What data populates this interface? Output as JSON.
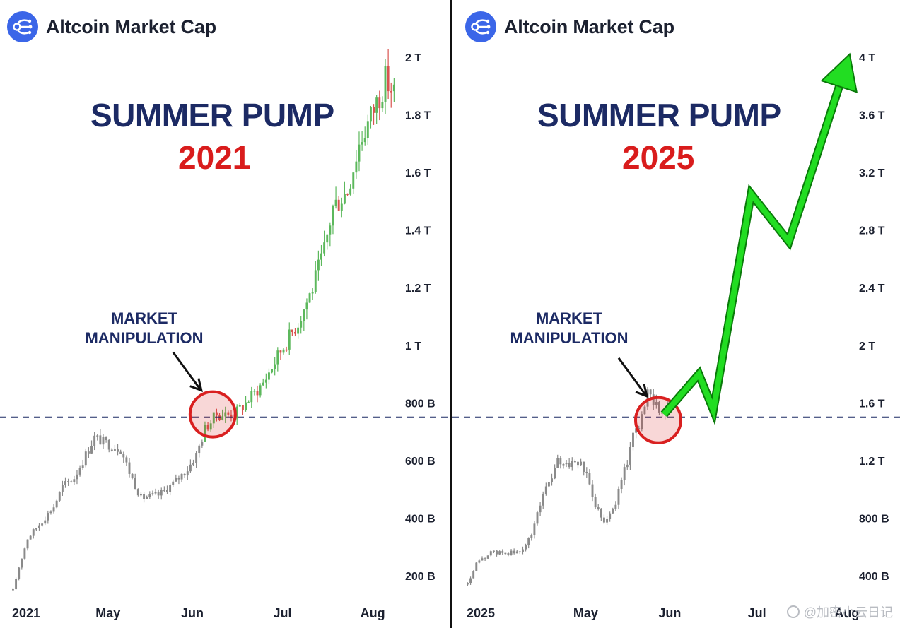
{
  "panels": [
    {
      "brand": "Altcoin Market Cap",
      "headline": "SUMMER PUMP",
      "year": "2021",
      "annotation_line1": "MARKET",
      "annotation_line2": "MANIPULATION",
      "watermark": ""
    },
    {
      "brand": "Altcoin Market Cap",
      "headline": "SUMMER PUMP",
      "year": "2025",
      "annotation_line1": "MARKET",
      "annotation_line2": "MANIPULATION",
      "watermark": "@加密小云日记"
    }
  ],
  "colors": {
    "brand_blue": "#3b66e8",
    "headline_navy": "#1c2a64",
    "year_red": "#d91c1c",
    "candle_gray": "#8a8a8a",
    "candle_up": "#5cb85c",
    "candle_down": "#d9534f",
    "arrow_green": "#22dd22",
    "circle_red": "#d92020"
  },
  "chart_data": [
    {
      "type": "candlestick",
      "title": "Altcoin Market Cap",
      "y_unit": "USD",
      "ylim": [
        100000000000,
        2000000000000
      ],
      "y_ticks": [
        2000000000000,
        1800000000000,
        1600000000000,
        1400000000000,
        1200000000000,
        1000000000000,
        800000000000,
        600000000000,
        400000000000,
        200000000000
      ],
      "y_tick_labels": [
        "2 T",
        "1.8 T",
        "1.6 T",
        "1.4 T",
        "1.2 T",
        "1 T",
        "800 B",
        "600 B",
        "400 B",
        "200 B"
      ],
      "x_tick_labels": [
        "2021",
        "May",
        "Jun",
        "Jul",
        "Aug"
      ],
      "x_tick_positions": [
        0,
        33,
        62,
        93,
        124
      ],
      "x_count": 132,
      "reference_line": 750000000000,
      "highlight_circle": {
        "x": 69,
        "y": 760000000000
      },
      "keypoints": [
        {
          "x": 0,
          "v": 150
        },
        {
          "x": 2,
          "v": 230
        },
        {
          "x": 5,
          "v": 330
        },
        {
          "x": 10,
          "v": 390
        },
        {
          "x": 14,
          "v": 440
        },
        {
          "x": 17,
          "v": 510
        },
        {
          "x": 21,
          "v": 540
        },
        {
          "x": 25,
          "v": 620
        },
        {
          "x": 28,
          "v": 680
        },
        {
          "x": 32,
          "v": 660
        },
        {
          "x": 37,
          "v": 640
        },
        {
          "x": 40,
          "v": 560
        },
        {
          "x": 44,
          "v": 470
        },
        {
          "x": 50,
          "v": 480
        },
        {
          "x": 55,
          "v": 520
        },
        {
          "x": 60,
          "v": 570
        },
        {
          "x": 63,
          "v": 620
        },
        {
          "x": 66,
          "v": 710
        },
        {
          "x": 70,
          "v": 760
        },
        {
          "x": 76,
          "v": 760
        },
        {
          "x": 80,
          "v": 800
        },
        {
          "x": 86,
          "v": 870
        },
        {
          "x": 92,
          "v": 980
        },
        {
          "x": 98,
          "v": 1080
        },
        {
          "x": 103,
          "v": 1200
        },
        {
          "x": 107,
          "v": 1330
        },
        {
          "x": 110,
          "v": 1480
        },
        {
          "x": 115,
          "v": 1540
        },
        {
          "x": 119,
          "v": 1700
        },
        {
          "x": 124,
          "v": 1820
        },
        {
          "x": 128,
          "v": 1920
        },
        {
          "x": 131,
          "v": 1880
        }
      ],
      "value_unit_of_keypoints": "billion USD"
    },
    {
      "type": "candlestick",
      "title": "Altcoin Market Cap",
      "y_unit": "USD",
      "ylim": [
        200000000000,
        4000000000000
      ],
      "y_ticks": [
        4000000000000,
        3600000000000,
        3200000000000,
        2800000000000,
        2400000000000,
        2000000000000,
        1600000000000,
        1200000000000,
        800000000000,
        400000000000
      ],
      "y_tick_labels": [
        "4 T",
        "3.6 T",
        "3.2 T",
        "2.8 T",
        "2.4 T",
        "2 T",
        "1.6 T",
        "1.2 T",
        "800 B",
        "400 B"
      ],
      "x_tick_labels": [
        "2025",
        "May",
        "Jun",
        "Jul",
        "Aug"
      ],
      "x_tick_positions": [
        0,
        41,
        70,
        100,
        131
      ],
      "x_count": 71,
      "reference_line": 1500000000000,
      "highlight_circle": {
        "x": 66,
        "y": 1480000000000
      },
      "keypoints": [
        {
          "x": 0,
          "v": 340
        },
        {
          "x": 3,
          "v": 480
        },
        {
          "x": 8,
          "v": 560
        },
        {
          "x": 14,
          "v": 560
        },
        {
          "x": 18,
          "v": 560
        },
        {
          "x": 22,
          "v": 680
        },
        {
          "x": 26,
          "v": 980
        },
        {
          "x": 29,
          "v": 1080
        },
        {
          "x": 31,
          "v": 1190
        },
        {
          "x": 35,
          "v": 1180
        },
        {
          "x": 38,
          "v": 1190
        },
        {
          "x": 41,
          "v": 1100
        },
        {
          "x": 44,
          "v": 900
        },
        {
          "x": 47,
          "v": 780
        },
        {
          "x": 50,
          "v": 850
        },
        {
          "x": 53,
          "v": 1050
        },
        {
          "x": 55,
          "v": 1200
        },
        {
          "x": 57,
          "v": 1400
        },
        {
          "x": 59,
          "v": 1450
        },
        {
          "x": 62,
          "v": 1650
        },
        {
          "x": 65,
          "v": 1620
        },
        {
          "x": 67,
          "v": 1520
        },
        {
          "x": 70,
          "v": 1560
        }
      ],
      "projection": [
        {
          "x": 68,
          "v": 1520
        },
        {
          "x": 80,
          "v": 1800
        },
        {
          "x": 85,
          "v": 1550
        },
        {
          "x": 98,
          "v": 3050
        },
        {
          "x": 111,
          "v": 2720
        },
        {
          "x": 130,
          "v": 3900
        }
      ],
      "value_unit_of_keypoints": "billion USD"
    }
  ]
}
